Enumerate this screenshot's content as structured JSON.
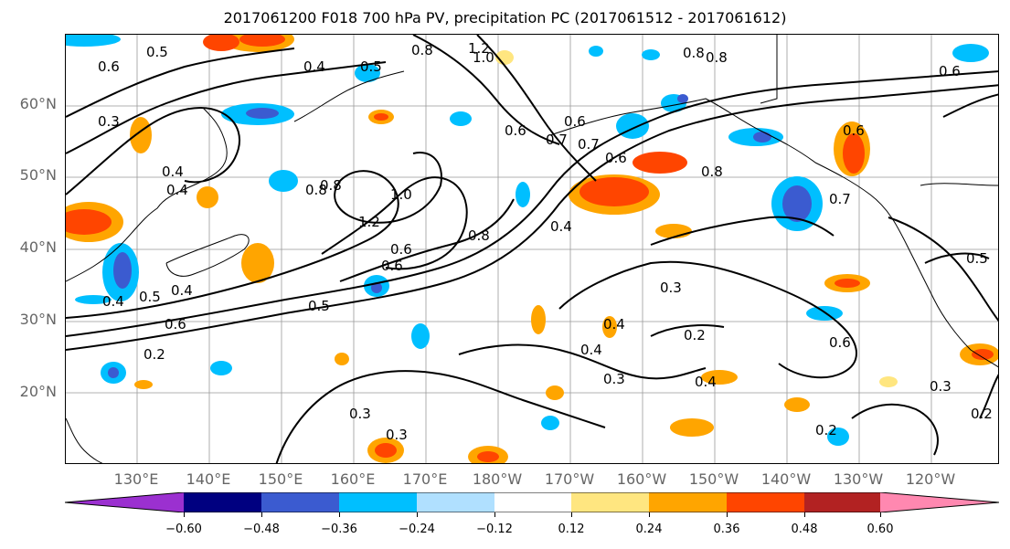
{
  "title": "2017061200 F018 700 hPa PV, precipitation PC (2017061512 - 2017061612)",
  "lat_labels": [
    "60°N",
    "50°N",
    "40°N",
    "30°N",
    "20°N"
  ],
  "lon_labels": [
    "130°E",
    "140°E",
    "150°E",
    "160°E",
    "170°E",
    "180°W",
    "170°W",
    "160°W",
    "150°W",
    "140°W",
    "130°W",
    "120°W"
  ],
  "colorbar": {
    "colors": [
      "#9b30d0",
      "#000080",
      "#3b5bd0",
      "#00bfff",
      "#b0e0ff",
      "#ffffff",
      "#ffe680",
      "#ffa500",
      "#ff4500",
      "#b22222",
      "#ff88b0"
    ],
    "ticks": [
      "−0.60",
      "−0.48",
      "−0.36",
      "−0.24",
      "−0.12",
      "0.12",
      "0.24",
      "0.36",
      "0.48",
      "0.60"
    ]
  },
  "contour_labels": [
    "0.5",
    "0.6",
    "0.3",
    "0.4",
    "0.5",
    "0.8",
    "1.0",
    "1.2",
    "0.4",
    "0.8",
    "0.6",
    "0.7",
    "0.6",
    "0.8",
    "0.8",
    "0.6",
    "0.4",
    "0.8",
    "1.2",
    "1.0",
    "0.6",
    "0.8",
    "0.6",
    "0.5",
    "0.5",
    "0.4",
    "0.4",
    "0.6",
    "0.2",
    "0.3",
    "0.4",
    "0.3",
    "0.2",
    "0.4",
    "0.3",
    "0.6",
    "0.4",
    "0.7",
    "0.3",
    "0.2",
    "0.2",
    "0.3",
    "0.5",
    "0.4",
    "0.6",
    "0.6",
    "0.8",
    "0.7"
  ]
}
